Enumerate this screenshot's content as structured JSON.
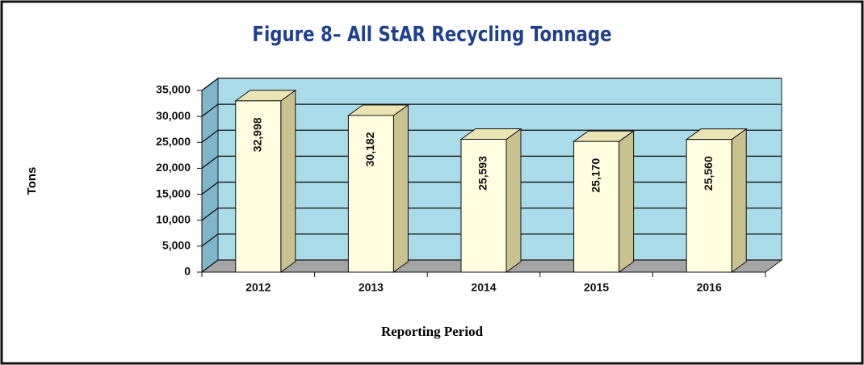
{
  "chart_data": {
    "type": "bar3d",
    "title": "Figure 8– All StAR Recycling Tonnage",
    "y_label": "Tons",
    "x_label": "Reporting Period",
    "categories": [
      "2012",
      "2013",
      "2014",
      "2015",
      "2016"
    ],
    "values": [
      32998,
      30182,
      25593,
      25170,
      25560
    ],
    "value_labels": [
      "32,998",
      "30,182",
      "25,593",
      "25,170",
      "25,560"
    ],
    "color": "#fffde0",
    "ylim": [
      0,
      35000
    ],
    "yticks": [
      0,
      {
        "value": 5000,
        "label": "5,000"
      },
      {
        "value": 10000,
        "label": "10,000"
      },
      {
        "value": 15000,
        "label": "15,000"
      },
      {
        "value": 20000,
        "label": "20,000"
      },
      {
        "value": 25000,
        "label": "25,000"
      },
      {
        "value": 30000,
        "label": "30,000"
      },
      {
        "value": 35000,
        "label": "35,000"
      }
    ],
    "grid": true
  }
}
